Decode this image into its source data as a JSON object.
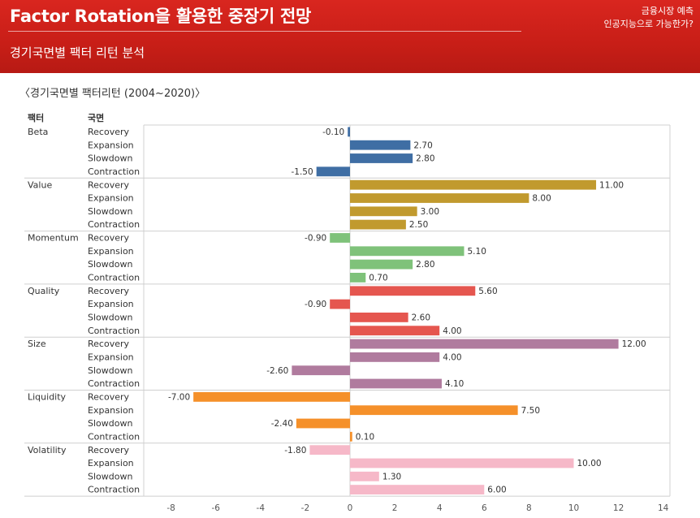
{
  "header": {
    "title": "Factor Rotation을 활용한 중장기 전망",
    "subtitle": "경기국면별 팩터 리턴 분석",
    "corner_line1": "금융시장 예측",
    "corner_line2": "인공지능으로 가능한가?"
  },
  "colors": {
    "header_bg": "#c81e17",
    "Beta": "#3f6ea4",
    "Value": "#c19a2e",
    "Momentum": "#7fc27a",
    "Quality": "#e5564f",
    "Size": "#b07b9e",
    "Liquidity": "#f5902a",
    "Volatility": "#f6b8c8"
  },
  "chart_data": {
    "type": "bar",
    "orientation": "horizontal",
    "title": "〈경기국면별 팩터리턴 (2004~2020)〉",
    "col_header_factor": "팩터",
    "col_header_phase": "국면",
    "phases": [
      "Recovery",
      "Expansion",
      "Slowdown",
      "Contraction"
    ],
    "xlim": [
      -8,
      14
    ],
    "xticks": [
      "-8",
      "-6",
      "-4",
      "-2",
      "0",
      "2",
      "4",
      "6",
      "8",
      "10",
      "12",
      "14"
    ],
    "grid": true,
    "groups": [
      {
        "factor": "Beta",
        "values": [
          -0.1,
          2.7,
          2.8,
          -1.5
        ],
        "labels": [
          "-0.10",
          "2.70",
          "2.80",
          "-1.50"
        ]
      },
      {
        "factor": "Value",
        "values": [
          11.0,
          8.0,
          3.0,
          2.5
        ],
        "labels": [
          "11.00",
          "8.00",
          "3.00",
          "2.50"
        ]
      },
      {
        "factor": "Momentum",
        "values": [
          -0.9,
          5.1,
          2.8,
          0.7
        ],
        "labels": [
          "-0.90",
          "5.10",
          "2.80",
          "0.70"
        ]
      },
      {
        "factor": "Quality",
        "values": [
          5.6,
          -0.9,
          2.6,
          4.0
        ],
        "labels": [
          "5.60",
          "-0.90",
          "2.60",
          "4.00"
        ]
      },
      {
        "factor": "Size",
        "values": [
          12.0,
          4.0,
          -2.6,
          4.1
        ],
        "labels": [
          "12.00",
          "4.00",
          "-2.60",
          "4.10"
        ]
      },
      {
        "factor": "Liquidity",
        "values": [
          -7.0,
          7.5,
          -2.4,
          0.1
        ],
        "labels": [
          "-7.00",
          "7.50",
          "-2.40",
          "0.10"
        ]
      },
      {
        "factor": "Volatility",
        "values": [
          -1.8,
          10.0,
          1.3,
          6.0
        ],
        "labels": [
          "-1.80",
          "10.00",
          "1.30",
          "6.00"
        ]
      }
    ]
  }
}
